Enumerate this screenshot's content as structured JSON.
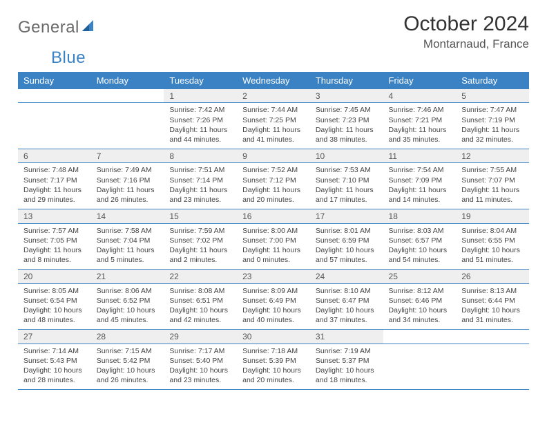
{
  "brand": {
    "part1": "General",
    "part2": "Blue"
  },
  "title": "October 2024",
  "location": "Montarnaud, France",
  "colors": {
    "header_bg": "#3b82c4",
    "header_fg": "#ffffff",
    "daynum_bg": "#efefef",
    "rule": "#3b82c4",
    "text": "#333333",
    "muted": "#555555"
  },
  "weekday_labels": [
    "Sunday",
    "Monday",
    "Tuesday",
    "Wednesday",
    "Thursday",
    "Friday",
    "Saturday"
  ],
  "weeks": [
    [
      {
        "n": "",
        "lines": []
      },
      {
        "n": "",
        "lines": []
      },
      {
        "n": "1",
        "lines": [
          "Sunrise: 7:42 AM",
          "Sunset: 7:26 PM",
          "Daylight: 11 hours",
          "and 44 minutes."
        ]
      },
      {
        "n": "2",
        "lines": [
          "Sunrise: 7:44 AM",
          "Sunset: 7:25 PM",
          "Daylight: 11 hours",
          "and 41 minutes."
        ]
      },
      {
        "n": "3",
        "lines": [
          "Sunrise: 7:45 AM",
          "Sunset: 7:23 PM",
          "Daylight: 11 hours",
          "and 38 minutes."
        ]
      },
      {
        "n": "4",
        "lines": [
          "Sunrise: 7:46 AM",
          "Sunset: 7:21 PM",
          "Daylight: 11 hours",
          "and 35 minutes."
        ]
      },
      {
        "n": "5",
        "lines": [
          "Sunrise: 7:47 AM",
          "Sunset: 7:19 PM",
          "Daylight: 11 hours",
          "and 32 minutes."
        ]
      }
    ],
    [
      {
        "n": "6",
        "lines": [
          "Sunrise: 7:48 AM",
          "Sunset: 7:17 PM",
          "Daylight: 11 hours",
          "and 29 minutes."
        ]
      },
      {
        "n": "7",
        "lines": [
          "Sunrise: 7:49 AM",
          "Sunset: 7:16 PM",
          "Daylight: 11 hours",
          "and 26 minutes."
        ]
      },
      {
        "n": "8",
        "lines": [
          "Sunrise: 7:51 AM",
          "Sunset: 7:14 PM",
          "Daylight: 11 hours",
          "and 23 minutes."
        ]
      },
      {
        "n": "9",
        "lines": [
          "Sunrise: 7:52 AM",
          "Sunset: 7:12 PM",
          "Daylight: 11 hours",
          "and 20 minutes."
        ]
      },
      {
        "n": "10",
        "lines": [
          "Sunrise: 7:53 AM",
          "Sunset: 7:10 PM",
          "Daylight: 11 hours",
          "and 17 minutes."
        ]
      },
      {
        "n": "11",
        "lines": [
          "Sunrise: 7:54 AM",
          "Sunset: 7:09 PM",
          "Daylight: 11 hours",
          "and 14 minutes."
        ]
      },
      {
        "n": "12",
        "lines": [
          "Sunrise: 7:55 AM",
          "Sunset: 7:07 PM",
          "Daylight: 11 hours",
          "and 11 minutes."
        ]
      }
    ],
    [
      {
        "n": "13",
        "lines": [
          "Sunrise: 7:57 AM",
          "Sunset: 7:05 PM",
          "Daylight: 11 hours",
          "and 8 minutes."
        ]
      },
      {
        "n": "14",
        "lines": [
          "Sunrise: 7:58 AM",
          "Sunset: 7:04 PM",
          "Daylight: 11 hours",
          "and 5 minutes."
        ]
      },
      {
        "n": "15",
        "lines": [
          "Sunrise: 7:59 AM",
          "Sunset: 7:02 PM",
          "Daylight: 11 hours",
          "and 2 minutes."
        ]
      },
      {
        "n": "16",
        "lines": [
          "Sunrise: 8:00 AM",
          "Sunset: 7:00 PM",
          "Daylight: 11 hours",
          "and 0 minutes."
        ]
      },
      {
        "n": "17",
        "lines": [
          "Sunrise: 8:01 AM",
          "Sunset: 6:59 PM",
          "Daylight: 10 hours",
          "and 57 minutes."
        ]
      },
      {
        "n": "18",
        "lines": [
          "Sunrise: 8:03 AM",
          "Sunset: 6:57 PM",
          "Daylight: 10 hours",
          "and 54 minutes."
        ]
      },
      {
        "n": "19",
        "lines": [
          "Sunrise: 8:04 AM",
          "Sunset: 6:55 PM",
          "Daylight: 10 hours",
          "and 51 minutes."
        ]
      }
    ],
    [
      {
        "n": "20",
        "lines": [
          "Sunrise: 8:05 AM",
          "Sunset: 6:54 PM",
          "Daylight: 10 hours",
          "and 48 minutes."
        ]
      },
      {
        "n": "21",
        "lines": [
          "Sunrise: 8:06 AM",
          "Sunset: 6:52 PM",
          "Daylight: 10 hours",
          "and 45 minutes."
        ]
      },
      {
        "n": "22",
        "lines": [
          "Sunrise: 8:08 AM",
          "Sunset: 6:51 PM",
          "Daylight: 10 hours",
          "and 42 minutes."
        ]
      },
      {
        "n": "23",
        "lines": [
          "Sunrise: 8:09 AM",
          "Sunset: 6:49 PM",
          "Daylight: 10 hours",
          "and 40 minutes."
        ]
      },
      {
        "n": "24",
        "lines": [
          "Sunrise: 8:10 AM",
          "Sunset: 6:47 PM",
          "Daylight: 10 hours",
          "and 37 minutes."
        ]
      },
      {
        "n": "25",
        "lines": [
          "Sunrise: 8:12 AM",
          "Sunset: 6:46 PM",
          "Daylight: 10 hours",
          "and 34 minutes."
        ]
      },
      {
        "n": "26",
        "lines": [
          "Sunrise: 8:13 AM",
          "Sunset: 6:44 PM",
          "Daylight: 10 hours",
          "and 31 minutes."
        ]
      }
    ],
    [
      {
        "n": "27",
        "lines": [
          "Sunrise: 7:14 AM",
          "Sunset: 5:43 PM",
          "Daylight: 10 hours",
          "and 28 minutes."
        ]
      },
      {
        "n": "28",
        "lines": [
          "Sunrise: 7:15 AM",
          "Sunset: 5:42 PM",
          "Daylight: 10 hours",
          "and 26 minutes."
        ]
      },
      {
        "n": "29",
        "lines": [
          "Sunrise: 7:17 AM",
          "Sunset: 5:40 PM",
          "Daylight: 10 hours",
          "and 23 minutes."
        ]
      },
      {
        "n": "30",
        "lines": [
          "Sunrise: 7:18 AM",
          "Sunset: 5:39 PM",
          "Daylight: 10 hours",
          "and 20 minutes."
        ]
      },
      {
        "n": "31",
        "lines": [
          "Sunrise: 7:19 AM",
          "Sunset: 5:37 PM",
          "Daylight: 10 hours",
          "and 18 minutes."
        ]
      },
      {
        "n": "",
        "lines": []
      },
      {
        "n": "",
        "lines": []
      }
    ]
  ]
}
